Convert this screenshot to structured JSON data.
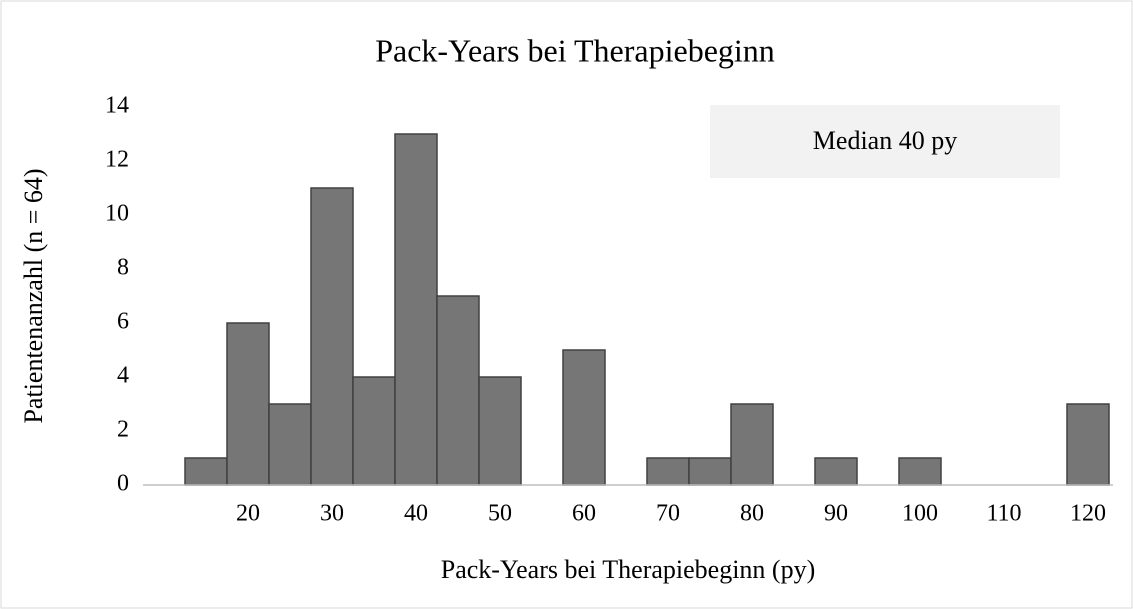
{
  "chart_data": {
    "type": "histogram",
    "title": "Pack-Years bei Therapiebeginn",
    "x_label": "Pack-Years bei Therapiebeginn (py)",
    "y_label": "Patientenanzahl (n = 64)",
    "annotation": "Median 40 py",
    "bins": [
      7.5,
      12.5,
      17.5,
      22.5,
      27.5,
      32.5,
      37.5,
      42.5,
      47.5,
      52.5,
      57.5,
      62.5,
      67.5,
      72.5,
      77.5,
      82.5,
      87.5,
      92.5,
      97.5,
      102.5,
      107.5,
      112.5,
      117.5,
      122.5
    ],
    "counts": [
      0,
      1,
      6,
      3,
      11,
      4,
      13,
      7,
      4,
      0,
      5,
      0,
      1,
      1,
      3,
      0,
      1,
      0,
      1,
      0,
      0,
      0,
      3
    ],
    "color": "#767676",
    "xlim": [
      7.5,
      122.5
    ],
    "xticks": [
      20,
      30,
      40,
      50,
      60,
      70,
      80,
      90,
      100,
      110,
      120
    ],
    "ylim": [
      0,
      14
    ],
    "yticks": [
      0,
      2,
      4,
      6,
      8,
      10,
      12,
      14
    ],
    "grid": false
  }
}
